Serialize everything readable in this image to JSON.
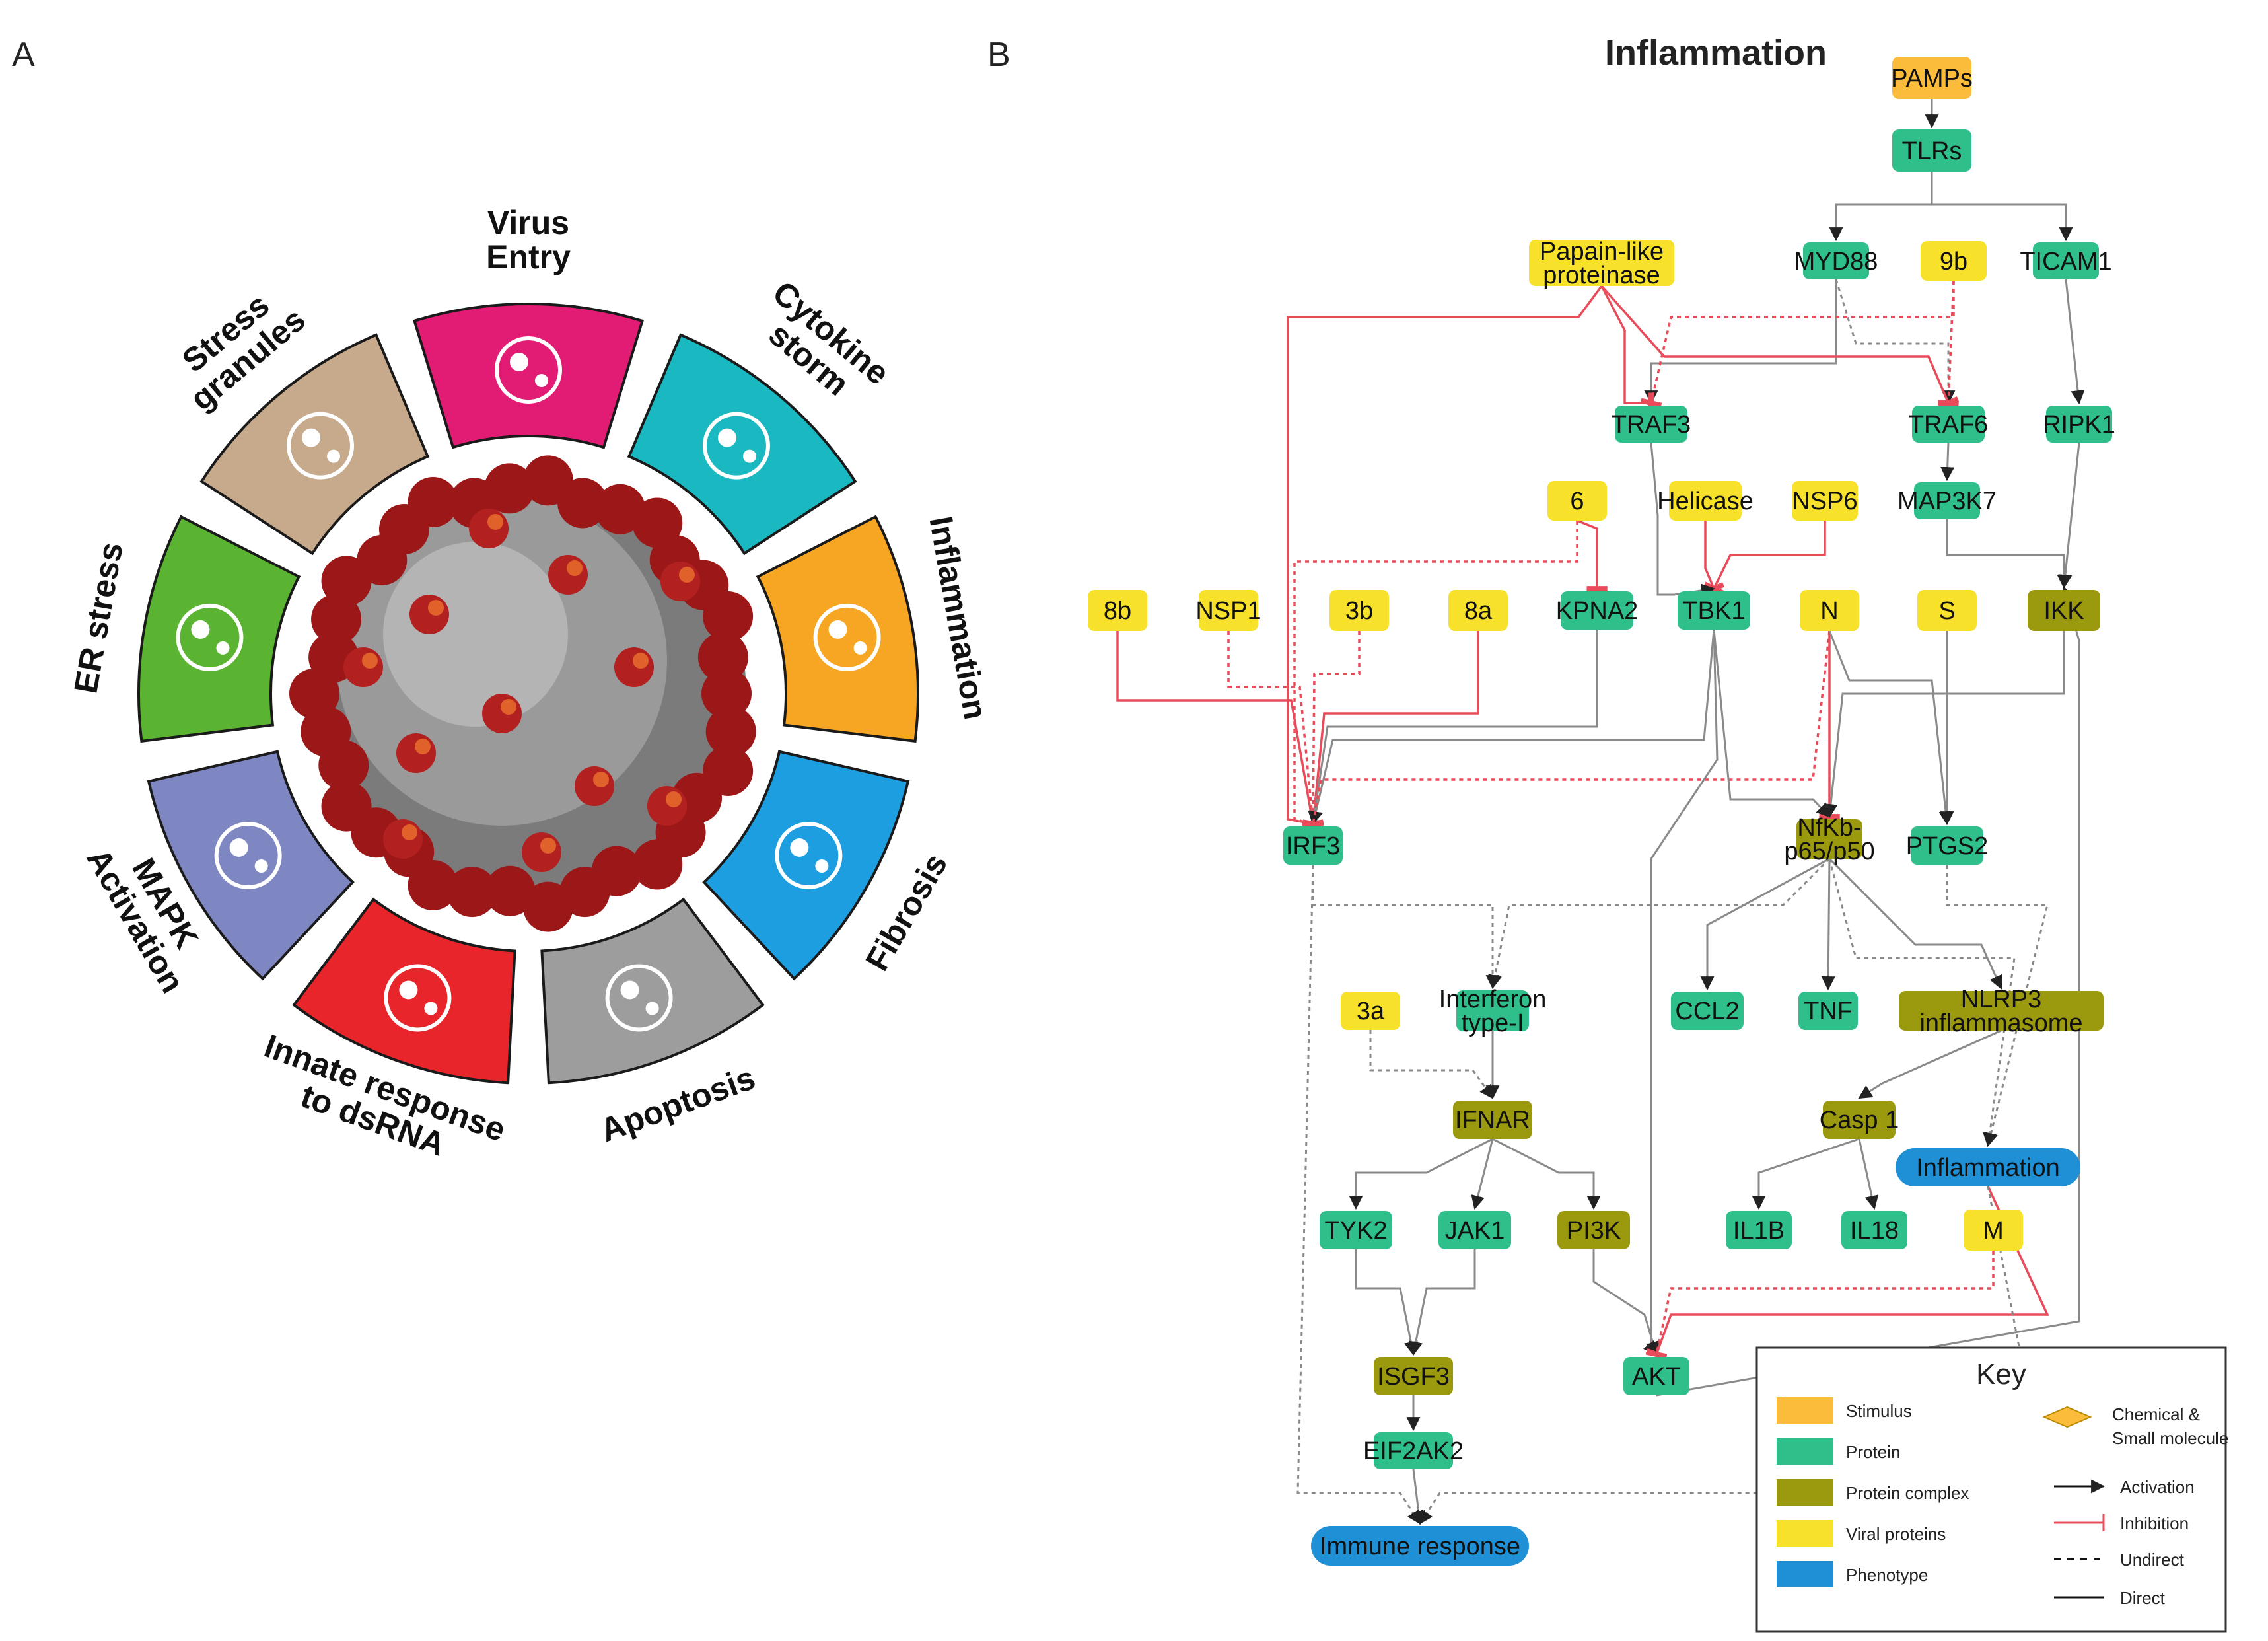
{
  "panel_a": {
    "label": "A",
    "segments": [
      {
        "id": "virus-entry",
        "lines": [
          "Virus",
          "Entry"
        ],
        "color": "#e21c74"
      },
      {
        "id": "cytokine-storm",
        "lines": [
          "Cytokine",
          "storm"
        ],
        "color": "#1ab8c1"
      },
      {
        "id": "inflammation",
        "lines": [
          "Inflammation"
        ],
        "color": "#f6a623"
      },
      {
        "id": "fibrosis",
        "lines": [
          "Fibrosis"
        ],
        "color": "#1d9ee0"
      },
      {
        "id": "apoptosis",
        "lines": [
          "Apoptosis"
        ],
        "color": "#9d9d9d"
      },
      {
        "id": "innate-response",
        "lines": [
          "Innate response",
          "to dsRNA"
        ],
        "color": "#e8252a"
      },
      {
        "id": "mapk-activation",
        "lines": [
          "MAPK",
          "Activation"
        ],
        "color": "#7f87c3"
      },
      {
        "id": "er-stress",
        "lines": [
          "ER stress"
        ],
        "color": "#5bb431"
      },
      {
        "id": "stress-granules",
        "lines": [
          "Stress",
          "granules"
        ],
        "color": "#c7a98b"
      }
    ]
  },
  "panel_b": {
    "label": "B",
    "title": "Inflammation",
    "nodes": {
      "PAMPs": "PAMPs",
      "TLRs": "TLRs",
      "PLP": "Papain-like proteinase",
      "MYD88": "MYD88",
      "9b": "9b",
      "TICAM1": "TICAM1",
      "TRAF3": "TRAF3",
      "TRAF6": "TRAF6",
      "RIPK1": "RIPK1",
      "6": "6",
      "Helicase": "Helicase",
      "NSP6": "NSP6",
      "MAP3K7": "MAP3K7",
      "8b": "8b",
      "NSP1": "NSP1",
      "3b": "3b",
      "8a": "8a",
      "KPNA2": "KPNA2",
      "TBK1": "TBK1",
      "N": "N",
      "S": "S",
      "IKK": "IKK",
      "IRF3": "IRF3",
      "NFKB": "NfKb- p65/p50",
      "PTGS2": "PTGS2",
      "3a": "3a",
      "IFN1": "Interferon type-I",
      "CCL2": "CCL2",
      "TNF": "TNF",
      "NLRP3": "NLRP3 inflammasome",
      "IFNAR": "IFNAR",
      "CASP1": "Casp 1",
      "INFL": "Inflammation",
      "TYK2": "TYK2",
      "JAK1": "JAK1",
      "PI3K": "PI3K",
      "IL1B": "IL1B",
      "IL18": "IL18",
      "M": "M",
      "ISGF3": "ISGF3",
      "AKT": "AKT",
      "EIF2AK2": "EIF2AK2",
      "IMMUNE": "Immune response"
    },
    "node_types": {
      "stimulus": "#fbbc3c",
      "protein": "#2fbf8a",
      "complex": "#9b9a0f",
      "viral": "#f7e12a",
      "phenotype": "#1f90d6"
    },
    "key": {
      "title": "Key",
      "items": [
        {
          "type": "stimulus",
          "label": "Stimulus"
        },
        {
          "type": "protein",
          "label": "Protein"
        },
        {
          "type": "complex",
          "label": "Protein complex"
        },
        {
          "type": "viral",
          "label": "Viral proteins"
        },
        {
          "type": "phenotype",
          "label": "Phenotype"
        }
      ],
      "chemical": "Chemical & Small molecule",
      "activation": "Activation",
      "inhibition": "Inhibition",
      "undirect": "Undirect",
      "direct": "Direct"
    }
  }
}
